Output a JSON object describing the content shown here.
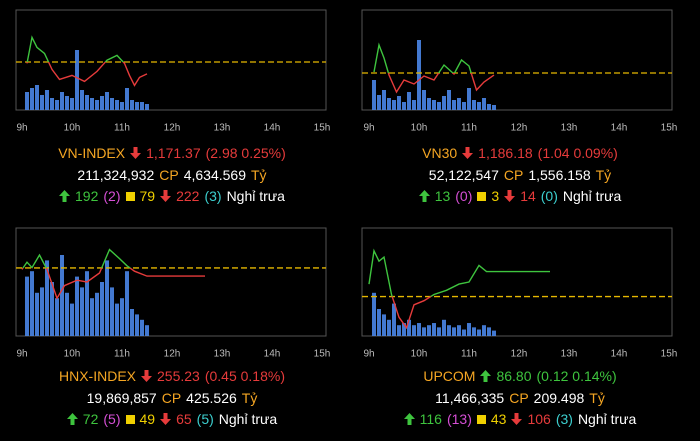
{
  "chart_data": [
    {
      "type": "line",
      "xlim": [
        8.88,
        15.08
      ],
      "ylim": [
        1162.35,
        1187.35
      ],
      "y2lim": [
        0,
        100
      ],
      "xticks": [
        {
          "value": 9,
          "label": "9h"
        },
        {
          "value": 10,
          "label": "10h"
        },
        {
          "value": 11,
          "label": "11h"
        },
        {
          "value": 12,
          "label": "12h"
        },
        {
          "value": 13,
          "label": "13h"
        },
        {
          "value": 14,
          "label": "14h"
        },
        {
          "value": 15,
          "label": "15h"
        }
      ],
      "reference": 1174.35,
      "reference_color": "#e6b800",
      "up_color": "#3ec43e",
      "down_color": "#e63b3b",
      "x": [
        9.1,
        9.2,
        9.3,
        9.45,
        9.6,
        9.75,
        10.0,
        10.25,
        10.5,
        10.7,
        10.9,
        11.05,
        11.15,
        11.25,
        11.35,
        11.5
      ],
      "values": [
        1174.0,
        1180.5,
        1178.0,
        1176.5,
        1172.5,
        1170.0,
        1171.0,
        1169.5,
        1172.0,
        1174.8,
        1176.0,
        1174.0,
        1171.0,
        1168.5,
        1170.5,
        1171.37
      ],
      "bars": {
        "color": "#4a86e8",
        "x": [
          9.1,
          9.2,
          9.3,
          9.4,
          9.5,
          9.6,
          9.7,
          9.8,
          9.9,
          10.0,
          10.1,
          10.2,
          10.3,
          10.4,
          10.5,
          10.6,
          10.7,
          10.8,
          10.9,
          11.0,
          11.1,
          11.2,
          11.3,
          11.4,
          11.5
        ],
        "values": [
          18,
          22,
          25,
          15,
          20,
          12,
          10,
          18,
          14,
          12,
          60,
          20,
          15,
          12,
          10,
          14,
          18,
          12,
          10,
          8,
          22,
          10,
          8,
          8,
          6
        ]
      }
    },
    {
      "type": "line",
      "xlim": [
        8.86,
        15.06
      ],
      "ylim": [
        1168.72,
        1218.72
      ],
      "y2lim": [
        0,
        100
      ],
      "xticks": [
        {
          "value": 9,
          "label": "9h"
        },
        {
          "value": 10,
          "label": "10h"
        },
        {
          "value": 11,
          "label": "11h"
        },
        {
          "value": 12,
          "label": "12h"
        },
        {
          "value": 13,
          "label": "13h"
        },
        {
          "value": 14,
          "label": "14h"
        },
        {
          "value": 15,
          "label": "15h"
        }
      ],
      "reference": 1187.22,
      "reference_color": "#e6b800",
      "up_color": "#3ec43e",
      "down_color": "#e63b3b",
      "x": [
        9.1,
        9.2,
        9.3,
        9.4,
        9.55,
        9.7,
        9.9,
        10.1,
        10.3,
        10.5,
        10.7,
        10.85,
        11.0,
        11.15,
        11.3,
        11.5
      ],
      "values": [
        1187.7,
        1201.2,
        1194.7,
        1186.2,
        1177.7,
        1183.7,
        1181.7,
        1185.7,
        1183.7,
        1191.2,
        1186.7,
        1193.7,
        1190.7,
        1178.7,
        1182.7,
        1186.18
      ],
      "bars": {
        "color": "#4a86e8",
        "x": [
          9.1,
          9.2,
          9.3,
          9.4,
          9.5,
          9.6,
          9.7,
          9.8,
          9.9,
          10.0,
          10.1,
          10.2,
          10.3,
          10.4,
          10.5,
          10.6,
          10.7,
          10.8,
          10.9,
          11.0,
          11.1,
          11.2,
          11.3,
          11.4,
          11.5
        ],
        "values": [
          30,
          15,
          20,
          12,
          10,
          14,
          8,
          18,
          10,
          70,
          20,
          12,
          10,
          8,
          14,
          20,
          10,
          12,
          8,
          22,
          10,
          8,
          12,
          6,
          5
        ]
      }
    },
    {
      "type": "line",
      "xlim": [
        8.88,
        15.08
      ],
      "ylim": [
        251.9,
        257.9
      ],
      "y2lim": [
        0,
        100
      ],
      "xticks": [
        {
          "value": 9,
          "label": "9h"
        },
        {
          "value": 10,
          "label": "10h"
        },
        {
          "value": 11,
          "label": "11h"
        },
        {
          "value": 12,
          "label": "12h"
        },
        {
          "value": 13,
          "label": "13h"
        },
        {
          "value": 14,
          "label": "14h"
        },
        {
          "value": 15,
          "label": "15h"
        }
      ],
      "reference": 255.68,
      "reference_color": "#e6b800",
      "up_color": "#3ec43e",
      "down_color": "#e63b3b",
      "x": [
        9.0,
        9.1,
        9.2,
        9.35,
        9.5,
        9.7,
        9.85,
        10.1,
        10.3,
        10.55,
        10.75,
        10.95,
        11.1,
        11.25,
        11.5,
        12.66
      ],
      "values": [
        255.6,
        256.0,
        255.7,
        256.4,
        255.6,
        254.0,
        254.7,
        255.0,
        254.9,
        255.4,
        256.7,
        256.2,
        255.8,
        255.5,
        255.23,
        255.23
      ],
      "bars": {
        "color": "#4a86e8",
        "x": [
          9.1,
          9.2,
          9.3,
          9.4,
          9.5,
          9.6,
          9.7,
          9.8,
          9.9,
          10.0,
          10.1,
          10.2,
          10.3,
          10.4,
          10.5,
          10.6,
          10.7,
          10.8,
          10.9,
          11.0,
          11.1,
          11.2,
          11.3,
          11.4,
          11.5
        ],
        "values": [
          55,
          60,
          40,
          45,
          70,
          50,
          35,
          75,
          40,
          30,
          55,
          45,
          60,
          35,
          40,
          50,
          70,
          45,
          30,
          35,
          60,
          25,
          20,
          15,
          10
        ]
      }
    },
    {
      "type": "line",
      "xlim": [
        8.86,
        15.06
      ],
      "ylim": [
        86.49,
        87.01
      ],
      "y2lim": [
        0,
        100
      ],
      "xticks": [
        {
          "value": 9,
          "label": "9h"
        },
        {
          "value": 10,
          "label": "10h"
        },
        {
          "value": 11,
          "label": "11h"
        },
        {
          "value": 12,
          "label": "12h"
        },
        {
          "value": 13,
          "label": "13h"
        },
        {
          "value": 14,
          "label": "14h"
        },
        {
          "value": 15,
          "label": "15h"
        }
      ],
      "reference": 86.68,
      "reference_color": "#e6b800",
      "up_color": "#3ec43e",
      "down_color": "#e63b3b",
      "x": [
        9.0,
        9.1,
        9.2,
        9.3,
        9.45,
        9.6,
        9.75,
        9.9,
        10.1,
        10.3,
        10.55,
        10.8,
        11.0,
        11.2,
        11.35,
        11.55,
        12.62
      ],
      "values": [
        86.74,
        86.9,
        86.85,
        86.87,
        86.69,
        86.58,
        86.53,
        86.64,
        86.66,
        86.69,
        86.71,
        86.74,
        86.75,
        86.83,
        86.8,
        86.8,
        86.8
      ],
      "bars": {
        "color": "#4a86e8",
        "x": [
          9.1,
          9.2,
          9.3,
          9.4,
          9.5,
          9.6,
          9.7,
          9.8,
          9.9,
          10.0,
          10.1,
          10.2,
          10.3,
          10.4,
          10.5,
          10.6,
          10.7,
          10.8,
          10.9,
          11.0,
          11.1,
          11.2,
          11.3,
          11.4,
          11.5
        ],
        "values": [
          40,
          25,
          20,
          15,
          30,
          10,
          12,
          15,
          10,
          12,
          8,
          10,
          12,
          8,
          15,
          10,
          8,
          10,
          6,
          12,
          8,
          6,
          10,
          8,
          5
        ]
      }
    }
  ],
  "panels": [
    {
      "name": "VN-INDEX",
      "direction": "down",
      "value": "1,171.37",
      "change": "(2.98 0.25%)",
      "volume": "211,324,932",
      "volume_unit": "CP",
      "turnover": "4,634.569",
      "turnover_unit": "Tỷ",
      "advances": "192",
      "ceiling": "(2)",
      "unchanged": "79",
      "declines": "222",
      "floor": "(3)",
      "status": "Nghỉ trưa"
    },
    {
      "name": "VN30",
      "direction": "down",
      "value": "1,186.18",
      "change": "(1.04 0.09%)",
      "volume": "52,122,547",
      "volume_unit": "CP",
      "turnover": "1,556.158",
      "turnover_unit": "Tỷ",
      "advances": "13",
      "ceiling": "(0)",
      "unchanged": "3",
      "declines": "14",
      "floor": "(0)",
      "status": "Nghỉ trưa"
    },
    {
      "name": "HNX-INDEX",
      "direction": "down",
      "value": "255.23",
      "change": "(0.45 0.18%)",
      "volume": "19,869,857",
      "volume_unit": "CP",
      "turnover": "425.526",
      "turnover_unit": "Tỷ",
      "advances": "72",
      "ceiling": "(5)",
      "unchanged": "49",
      "declines": "65",
      "floor": "(5)",
      "status": "Nghỉ trưa"
    },
    {
      "name": "UPCOM",
      "direction": "up",
      "value": "86.80",
      "change": "(0.12 0.14%)",
      "volume": "11,466,335",
      "volume_unit": "CP",
      "turnover": "209.498",
      "turnover_unit": "Tỷ",
      "advances": "116",
      "ceiling": "(13)",
      "unchanged": "43",
      "declines": "106",
      "floor": "(3)",
      "status": "Nghỉ trưa"
    }
  ]
}
